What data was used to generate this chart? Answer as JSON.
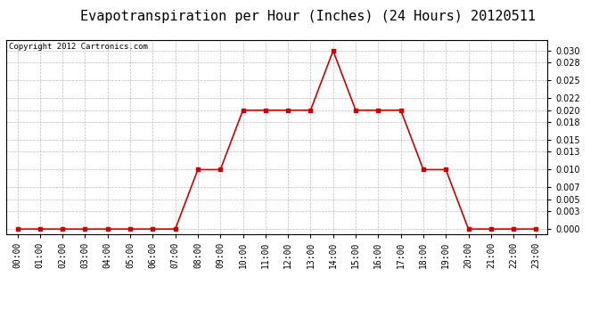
{
  "title": "Evapotranspiration per Hour (Inches) (24 Hours) 20120511",
  "copyright": "Copyright 2012 Cartronics.com",
  "hours": [
    0,
    1,
    2,
    3,
    4,
    5,
    6,
    7,
    8,
    9,
    10,
    11,
    12,
    13,
    14,
    15,
    16,
    17,
    18,
    19,
    20,
    21,
    22,
    23
  ],
  "values": [
    0.0,
    0.0,
    0.0,
    0.0,
    0.0,
    0.0,
    0.0,
    0.0,
    0.01,
    0.01,
    0.02,
    0.02,
    0.02,
    0.02,
    0.03,
    0.02,
    0.02,
    0.02,
    0.01,
    0.01,
    0.0,
    0.0,
    0.0,
    0.0
  ],
  "line_color": "#cc0000",
  "marker": "s",
  "marker_size": 2.5,
  "line_width": 1.2,
  "bg_color": "#ffffff",
  "plot_bg_color": "#ffffff",
  "grid_color": "#bbbbbb",
  "title_fontsize": 11,
  "copyright_fontsize": 6.5,
  "tick_fontsize": 7,
  "ytick_values": [
    0.0,
    0.003,
    0.005,
    0.007,
    0.01,
    0.013,
    0.015,
    0.018,
    0.02,
    0.022,
    0.025,
    0.028,
    0.03
  ],
  "xlim": [
    -0.5,
    23.5
  ],
  "ylim": [
    -0.0008,
    0.0318
  ]
}
